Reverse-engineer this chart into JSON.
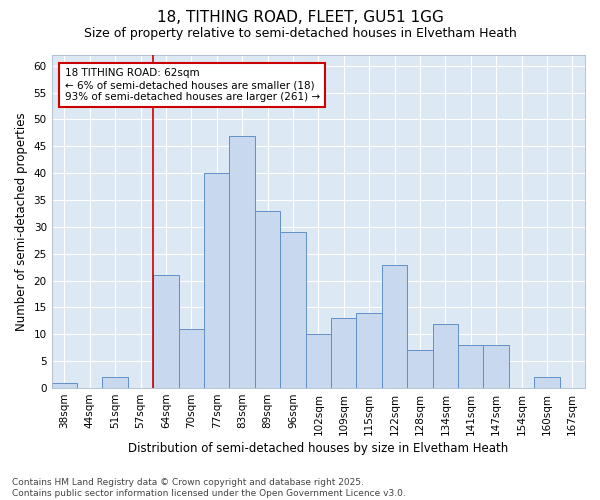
{
  "title": "18, TITHING ROAD, FLEET, GU51 1GG",
  "subtitle": "Size of property relative to semi-detached houses in Elvetham Heath",
  "xlabel": "Distribution of semi-detached houses by size in Elvetham Heath",
  "ylabel": "Number of semi-detached properties",
  "footer_line1": "Contains HM Land Registry data © Crown copyright and database right 2025.",
  "footer_line2": "Contains public sector information licensed under the Open Government Licence v3.0.",
  "annotation_title": "18 TITHING ROAD: 62sqm",
  "annotation_line1": "← 6% of semi-detached houses are smaller (18)",
  "annotation_line2": "93% of semi-detached houses are larger (261) →",
  "categories": [
    "38sqm",
    "44sqm",
    "51sqm",
    "57sqm",
    "64sqm",
    "70sqm",
    "77sqm",
    "83sqm",
    "89sqm",
    "96sqm",
    "102sqm",
    "109sqm",
    "115sqm",
    "122sqm",
    "128sqm",
    "134sqm",
    "141sqm",
    "147sqm",
    "154sqm",
    "160sqm",
    "167sqm"
  ],
  "values": [
    1,
    0,
    2,
    0,
    21,
    11,
    40,
    47,
    33,
    29,
    10,
    13,
    14,
    23,
    7,
    12,
    8,
    8,
    0,
    2,
    0
  ],
  "bar_color": "#c8d8ef",
  "bar_edge_color": "#6090c8",
  "marker_bar_index": 4,
  "marker_line_color": "#cc0000",
  "ylim": [
    0,
    62
  ],
  "yticks": [
    0,
    5,
    10,
    15,
    20,
    25,
    30,
    35,
    40,
    45,
    50,
    55,
    60
  ],
  "plot_bg_color": "#dde8f5",
  "fig_bg_color": "#ffffff",
  "grid_color": "#ffffff",
  "title_fontsize": 11,
  "subtitle_fontsize": 9,
  "axis_label_fontsize": 8.5,
  "tick_fontsize": 7.5,
  "annotation_fontsize": 7.5,
  "footer_fontsize": 6.5
}
